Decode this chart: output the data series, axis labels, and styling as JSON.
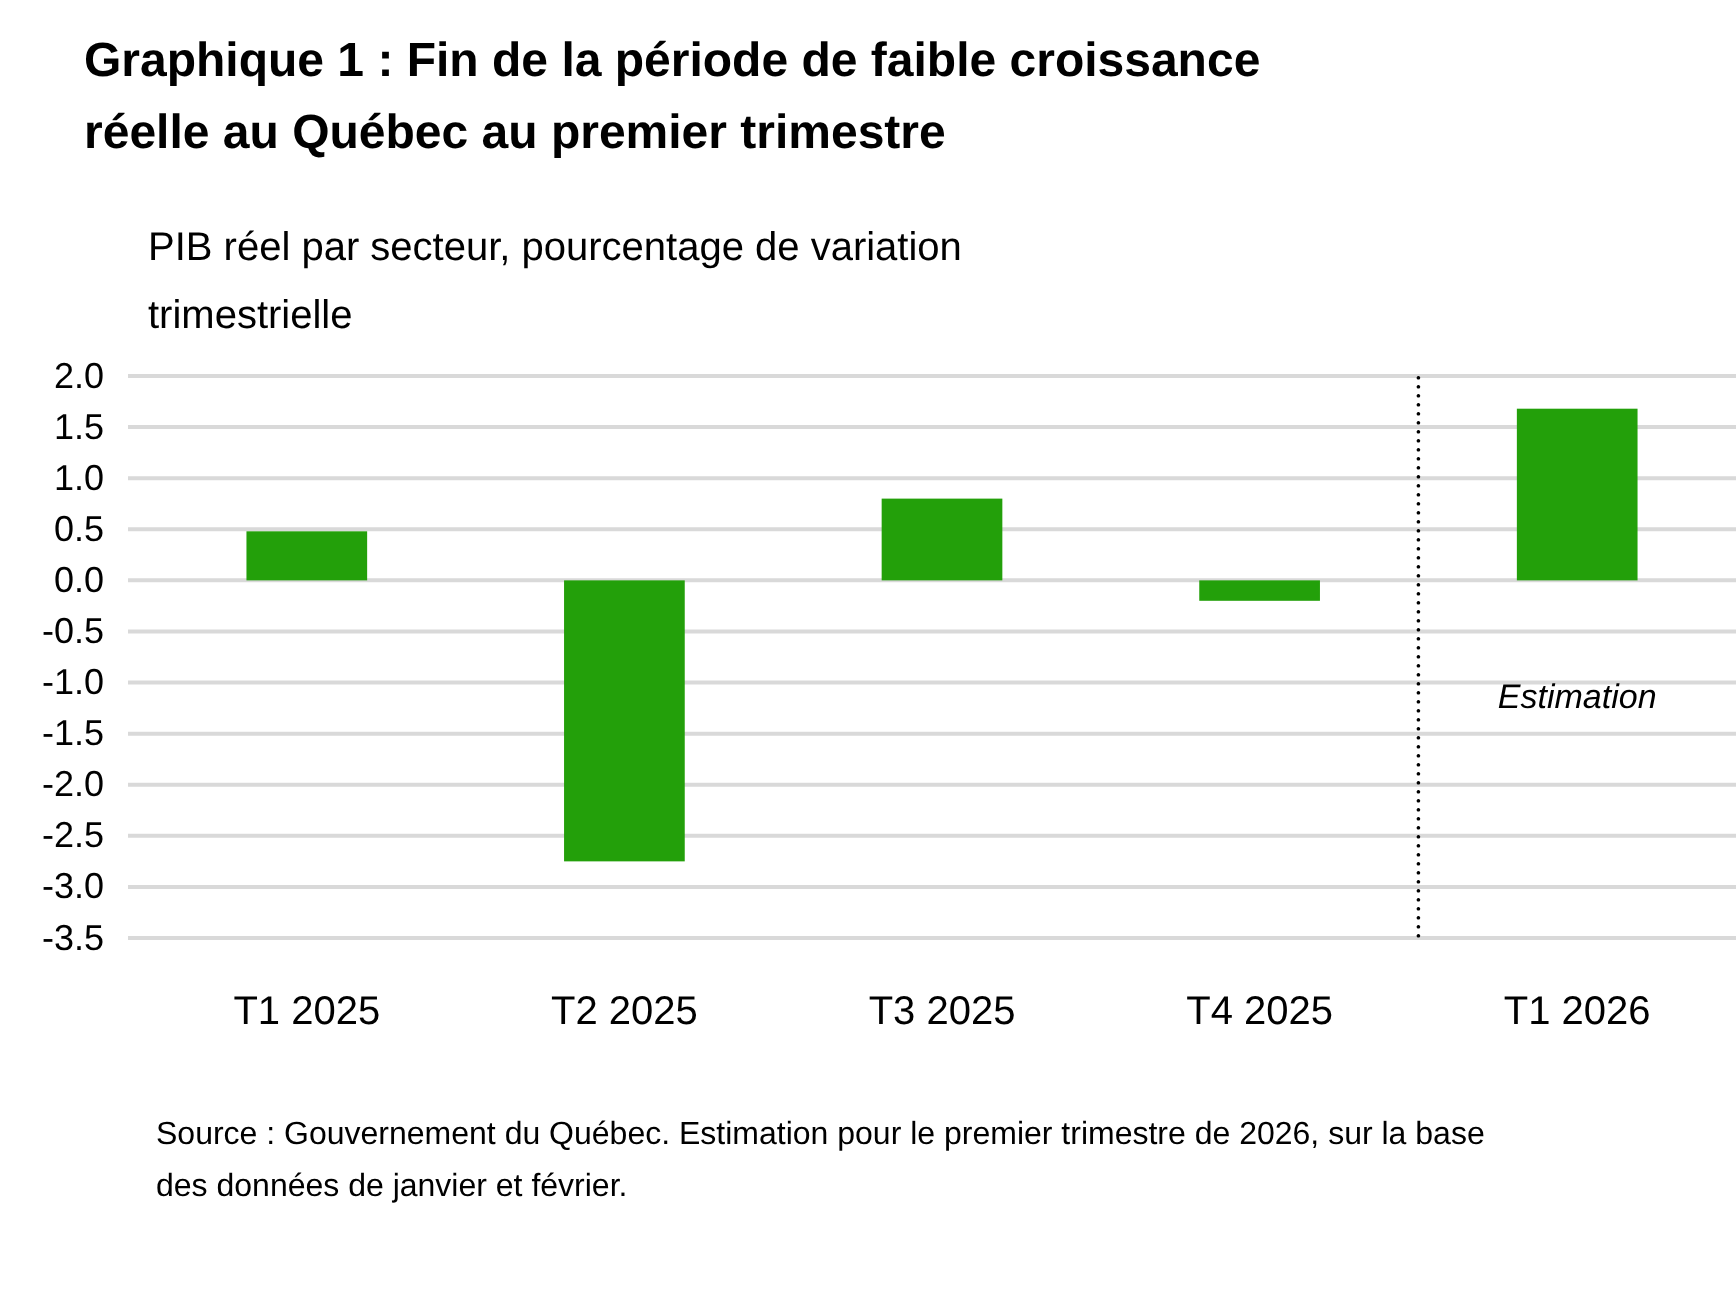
{
  "chart_data": {
    "type": "bar",
    "title": "Graphique 1 : Fin de la période de faible croissance réelle au Québec au premier trimestre",
    "ylabel": "PIB réel par secteur, pourcentage de variation trimestrielle",
    "categories": [
      "T1 2025",
      "T2 2025",
      "T3 2025",
      "T4 2025",
      "T1 2026"
    ],
    "series": [
      {
        "color": "#23a00a",
        "values": [
          0.48,
          -2.75,
          0.8,
          -0.2,
          1.68
        ]
      }
    ],
    "ylim": [
      -3.5,
      2.0
    ],
    "yticks": [
      {
        "value": 2,
        "label": "2.0"
      },
      {
        "value": 1.5,
        "label": "1.5"
      },
      {
        "value": 1,
        "label": "1.0"
      },
      {
        "value": 0.5,
        "label": "0.5"
      },
      {
        "value": 0,
        "label": "0.0"
      },
      {
        "value": -0.5,
        "label": "-0.5"
      },
      {
        "value": -1,
        "label": "-1.0"
      },
      {
        "value": -1.5,
        "label": "-1.5"
      },
      {
        "value": -2,
        "label": "-2.0"
      },
      {
        "value": -2.5,
        "label": "-2.5"
      },
      {
        "value": -3,
        "label": "-3.0"
      },
      {
        "value": -3.5,
        "label": "-3.5"
      }
    ],
    "grid": "y",
    "annotations": [
      "Estimation",
      "Source : Gouvernement du Québec. Estimation pour le premier trimestre de 2026, sur la base des données de janvier et février."
    ]
  }
}
